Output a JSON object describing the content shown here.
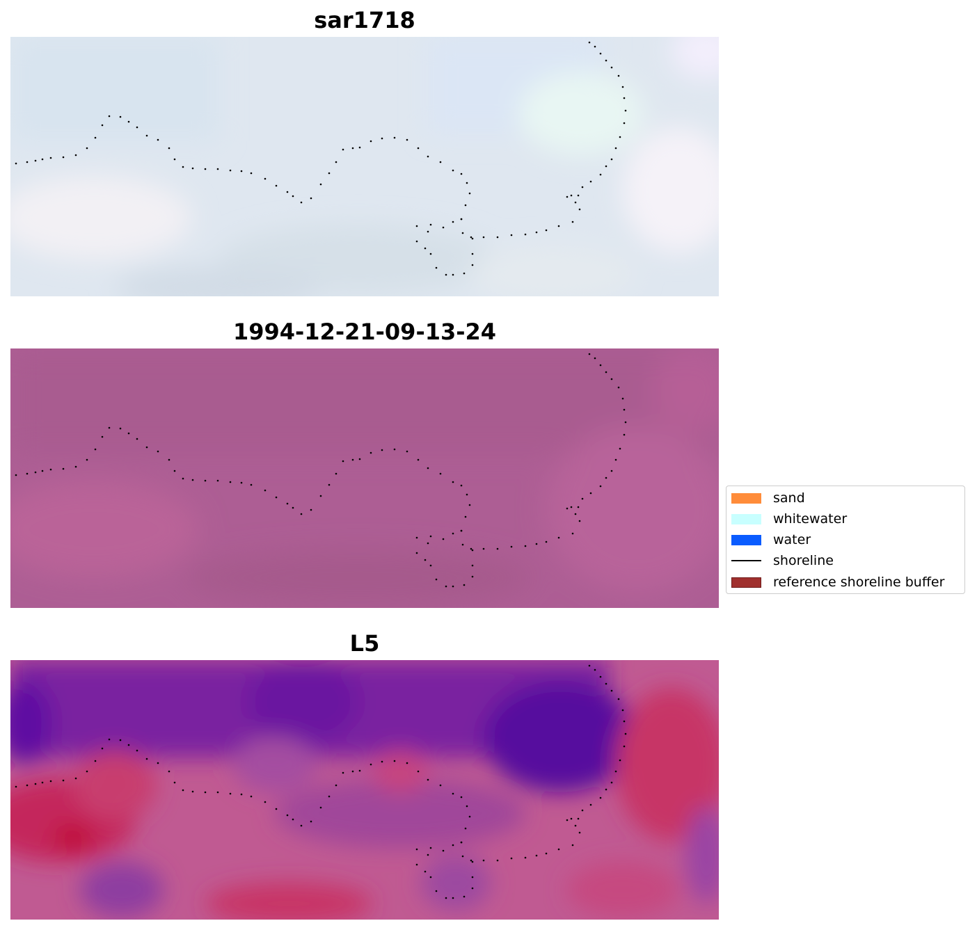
{
  "panels": [
    {
      "title": "sar1718"
    },
    {
      "title": "1994-12-21-09-13-24"
    },
    {
      "title": "L5"
    }
  ],
  "legend": {
    "items": [
      {
        "label": "sand",
        "color": "#ff8c3a",
        "kind": "patch"
      },
      {
        "label": "whitewater",
        "color": "#c8ffff",
        "kind": "patch"
      },
      {
        "label": "water",
        "color": "#0a5cff",
        "kind": "patch"
      },
      {
        "label": "shoreline",
        "color": "#000000",
        "kind": "line"
      },
      {
        "label": "reference shoreline buffer",
        "color": "#a0302e",
        "kind": "patch"
      }
    ]
  }
}
